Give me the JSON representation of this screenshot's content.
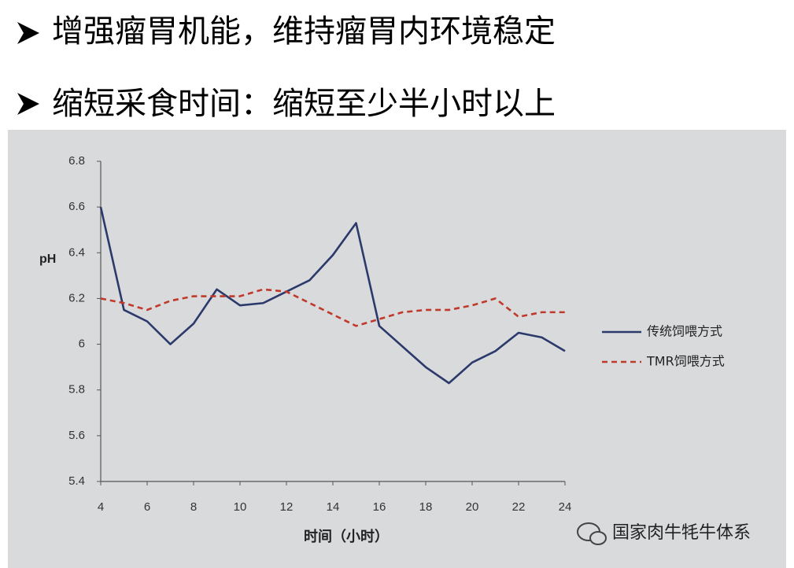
{
  "bullets": [
    "增强瘤胃机能，维持瘤胃内环境稳定",
    "缩短采食时间：缩短至少半小时以上"
  ],
  "watermark": "国家肉牛牦牛体系",
  "chart_data": {
    "type": "line",
    "x_label": "时间（小时）",
    "y_label": "pH",
    "x": [
      4,
      5,
      6,
      7,
      8,
      9,
      10,
      11,
      12,
      13,
      14,
      15,
      16,
      17,
      18,
      19,
      20,
      21,
      22,
      23,
      24
    ],
    "series": [
      {
        "name": "传统饲喂方式",
        "color": "#2b3a6b",
        "dash": false,
        "values": [
          6.6,
          6.15,
          6.1,
          6.0,
          6.09,
          6.24,
          6.17,
          6.18,
          6.23,
          6.28,
          6.39,
          6.53,
          6.08,
          5.99,
          5.9,
          5.83,
          5.92,
          5.97,
          6.05,
          6.03,
          5.97
        ]
      },
      {
        "name": "TMR饲喂方式",
        "color": "#c0392b",
        "dash": true,
        "values": [
          6.2,
          6.18,
          6.15,
          6.19,
          6.21,
          6.21,
          6.21,
          6.24,
          6.23,
          6.18,
          6.13,
          6.08,
          6.11,
          6.14,
          6.15,
          6.15,
          6.17,
          6.2,
          6.12,
          6.14,
          6.14
        ]
      }
    ],
    "xlim": [
      4,
      24
    ],
    "xticks": [
      4,
      6,
      8,
      10,
      12,
      14,
      16,
      18,
      20,
      22,
      24
    ],
    "ylim": [
      5.4,
      6.8
    ],
    "yticks": [
      5.4,
      5.6,
      5.8,
      6,
      6.2,
      6.4,
      6.6,
      6.8
    ],
    "legend": "right"
  }
}
